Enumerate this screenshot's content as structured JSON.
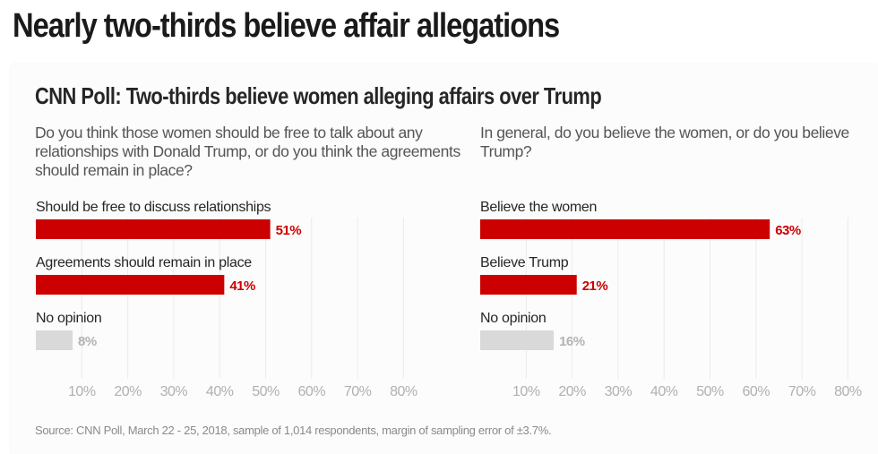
{
  "headline": "Nearly two-thirds believe affair allegations",
  "subtitle": "CNN Poll: Two-thirds believe women alleging affairs over Trump",
  "source": "Source: CNN Poll, March 22 - 25, 2018, sample of 1,014 respondents, margin of sampling error of ±3.7%.",
  "colors": {
    "highlight": "#cc0000",
    "muted_bar": "#d9d9d9",
    "muted_text": "#b3b3b3",
    "grid": "#ebebeb"
  },
  "chart_data": [
    {
      "type": "bar",
      "orientation": "horizontal",
      "title": "Do you think those women should be free to talk about any relationships with Donald Trump, or do you think the agreements should remain in place?",
      "categories": [
        "Should be free to discuss relationships",
        "Agreements should remain in place",
        "No opinion"
      ],
      "values": [
        51,
        41,
        8
      ],
      "value_labels": [
        "51%",
        "41%",
        "8%"
      ],
      "muted": [
        false,
        false,
        true
      ],
      "xlim": [
        0,
        80
      ],
      "xticks": [
        10,
        20,
        30,
        40,
        50,
        60,
        70,
        80
      ],
      "xtick_labels": [
        "10%",
        "20%",
        "30%",
        "40%",
        "50%",
        "60%",
        "70%",
        "80%"
      ],
      "grid": true,
      "xlabel": "",
      "ylabel": ""
    },
    {
      "type": "bar",
      "orientation": "horizontal",
      "title": "In general, do you believe the women, or do you believe Trump?",
      "categories": [
        "Believe the women",
        "Believe Trump",
        "No opinion"
      ],
      "values": [
        63,
        21,
        16
      ],
      "value_labels": [
        "63%",
        "21%",
        "16%"
      ],
      "muted": [
        false,
        false,
        true
      ],
      "xlim": [
        0,
        80
      ],
      "xticks": [
        10,
        20,
        30,
        40,
        50,
        60,
        70,
        80
      ],
      "xtick_labels": [
        "10%",
        "20%",
        "30%",
        "40%",
        "50%",
        "60%",
        "70%",
        "80%"
      ],
      "grid": true,
      "xlabel": "",
      "ylabel": ""
    }
  ]
}
